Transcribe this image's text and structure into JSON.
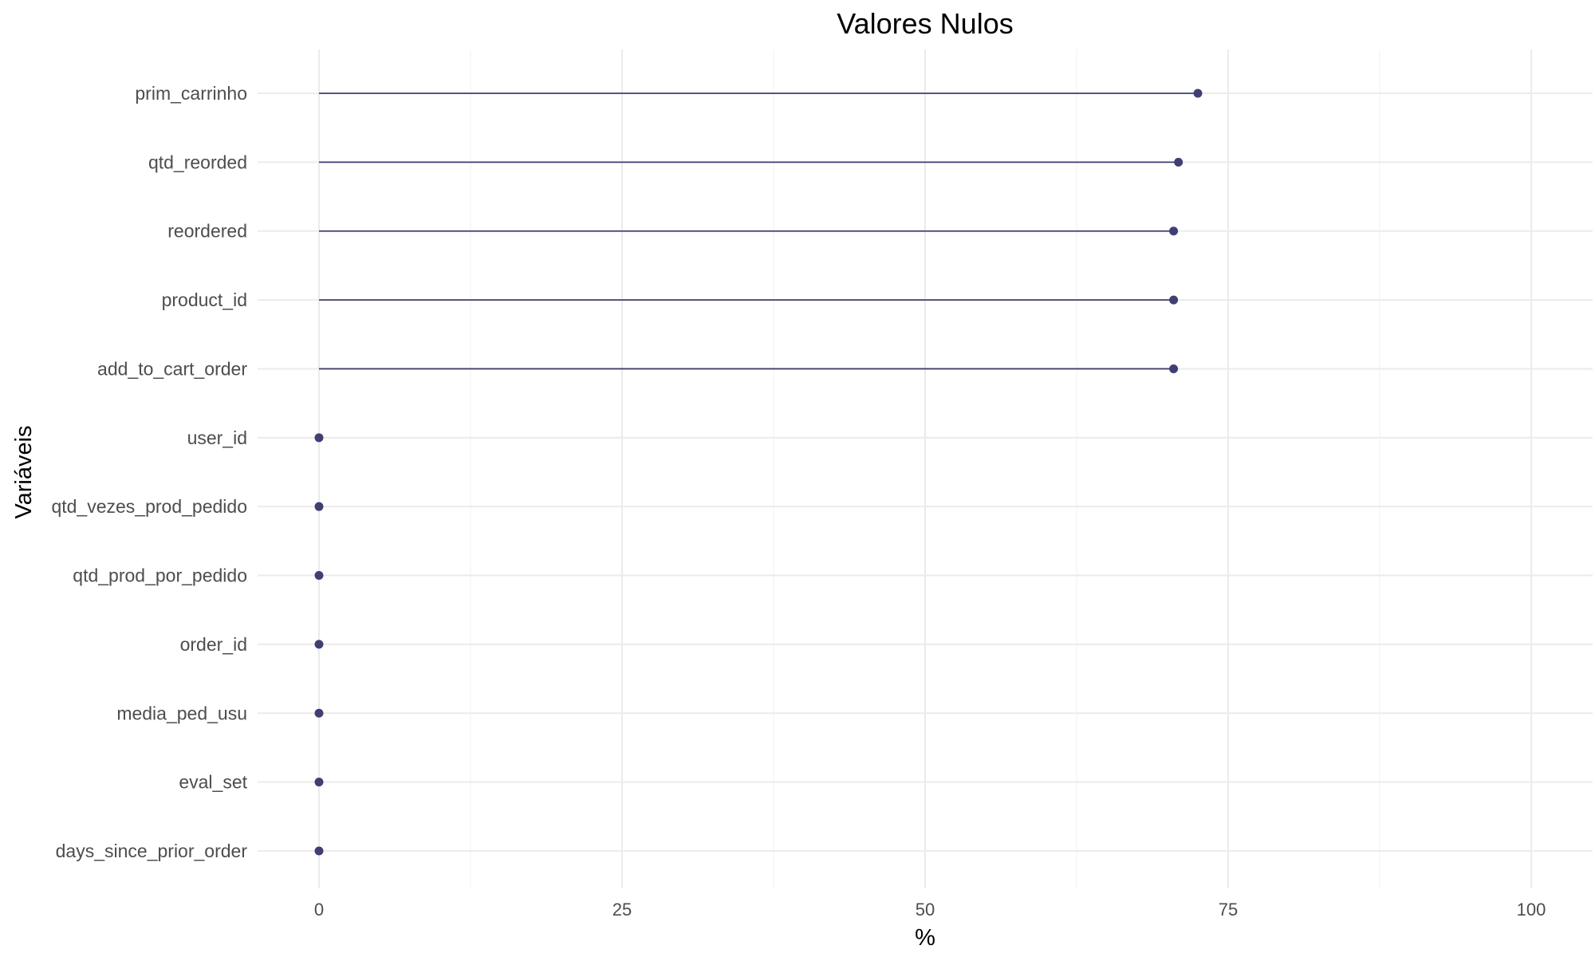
{
  "chart_data": {
    "type": "lollipop",
    "title": "Valores Nulos",
    "xlabel": "%",
    "ylabel": "Variáveis",
    "xlim": [
      -5,
      105
    ],
    "x_ticks": [
      0,
      25,
      50,
      75,
      100
    ],
    "grid": true,
    "legend": "none",
    "color": "#3f3f73",
    "categories": [
      "prim_carrinho",
      "qtd_reorded",
      "reordered",
      "product_id",
      "add_to_cart_order",
      "user_id",
      "qtd_vezes_prod_pedido",
      "qtd_prod_por_pedido",
      "order_id",
      "media_ped_usu",
      "eval_set",
      "days_since_prior_order"
    ],
    "values": [
      72.5,
      70.9,
      70.5,
      70.5,
      70.5,
      0,
      0,
      0,
      0,
      0,
      0,
      0
    ]
  }
}
